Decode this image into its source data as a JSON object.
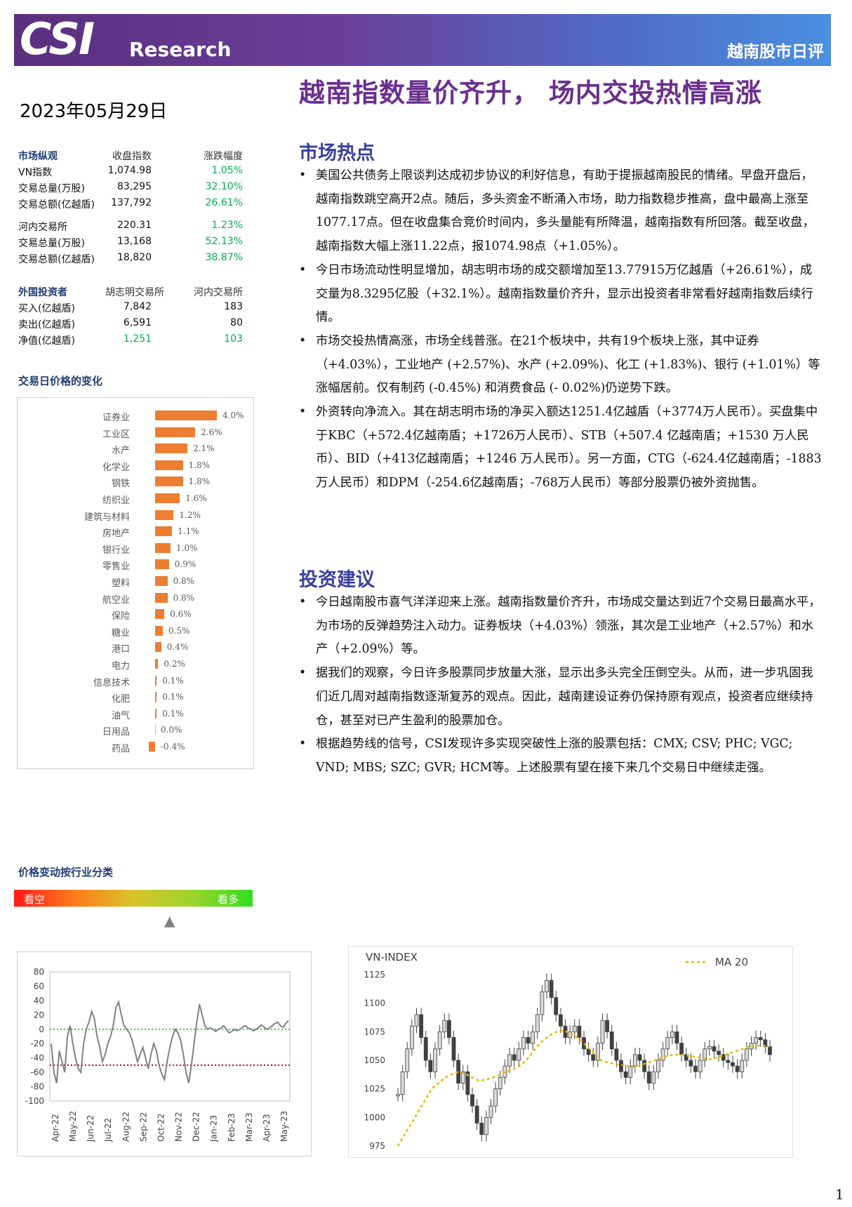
{
  "header": {
    "logo": "CSI",
    "logo_sub": "Research",
    "report_type": "越南股市日评"
  },
  "headline": "越南指数量价齐升， 场内交投热情高涨",
  "date": "2023年05月29日",
  "market_overview": {
    "title": "市场纵观",
    "col_close": "收盘指数",
    "col_change": "涨跌幅度",
    "rows": [
      {
        "label": "VN指数",
        "value": "1,074.98",
        "change": "1.05%"
      },
      {
        "label": "交易总量(万股)",
        "value": "83,295",
        "change": "32.10%"
      },
      {
        "label": "交易总额(亿越盾)",
        "value": "137,792",
        "change": "26.61%"
      },
      {
        "label": "河内交易所",
        "value": "220.31",
        "change": "1.23%"
      },
      {
        "label": "交易总量(万股)",
        "value": "13,168",
        "change": "52.13%"
      },
      {
        "label": "交易总额(亿越盾)",
        "value": "18,820",
        "change": "38.87%"
      }
    ]
  },
  "foreign": {
    "title": "外国投资者",
    "col_hose": "胡志明交易所",
    "col_hnx": "河内交易所",
    "rows": [
      {
        "label": "买入(亿越盾)",
        "hose": "7,842",
        "hnx": "183"
      },
      {
        "label": "卖出(亿越盾)",
        "hose": "6,591",
        "hnx": "80"
      },
      {
        "label": "净值(亿越盾)",
        "hose": "1,251",
        "hnx": "103"
      }
    ]
  },
  "sector_title": "交易日价格的变化",
  "chart_data": [
    {
      "type": "bar",
      "categories": [
        "证券业",
        "工业区",
        "水产",
        "化学业",
        "钢铁",
        "纺织业",
        "建筑与材料",
        "房地产",
        "银行业",
        "零售业",
        "塑料",
        "航空业",
        "保险",
        "糖业",
        "港口",
        "电力",
        "信息技术",
        "化肥",
        "油气",
        "日用品",
        "药品"
      ],
      "values": [
        4.0,
        2.6,
        2.1,
        1.8,
        1.8,
        1.6,
        1.2,
        1.1,
        1.0,
        0.9,
        0.8,
        0.8,
        0.6,
        0.5,
        0.4,
        0.2,
        0.1,
        0.1,
        0.1,
        0.0,
        -0.4
      ],
      "value_labels": [
        "4.0%",
        "2.6%",
        "2.1%",
        "1.8%",
        "1.8%",
        "1.6%",
        "1.2%",
        "1.1%",
        "1.0%",
        "0.9%",
        "0.8%",
        "0.8%",
        "0.6%",
        "0.5%",
        "0.4%",
        "0.2%",
        "0.1%",
        "0.1%",
        "0.1%",
        "0.0%",
        "-0.4%"
      ],
      "title": "",
      "bar_color": "#ed7d31"
    },
    {
      "type": "line",
      "title": "",
      "ylim": [
        -100,
        80
      ],
      "yticks": [
        "80",
        "60",
        "40",
        "20",
        "0",
        "-20",
        "-40",
        "-60",
        "-80",
        "-100"
      ],
      "xticks": [
        "Apr-22",
        "May-22",
        "Jun-22",
        "Jul-22",
        "Aug-22",
        "Sep-22",
        "Oct-22",
        "Nov-22",
        "Dec-22",
        "Jan-23",
        "Feb-23",
        "Mar-23",
        "Apr-23",
        "May-23"
      ],
      "reference_lines": [
        {
          "y": 0,
          "color": "#33cc33"
        },
        {
          "y": -50,
          "color": "#c00000"
        }
      ],
      "series": [
        {
          "values": [
            -20,
            -60,
            -75,
            -30,
            -45,
            -60,
            -10,
            5,
            -20,
            -40,
            -55,
            -60,
            -20,
            0,
            10,
            25,
            15,
            -10,
            -25,
            -45,
            -35,
            -20,
            -10,
            5,
            30,
            38,
            20,
            5,
            0,
            -5,
            -15,
            -30,
            -45,
            -35,
            -25,
            -40,
            -55,
            -35,
            -20,
            -30,
            -50,
            -62,
            -70,
            -45,
            -25,
            -10,
            0,
            -5,
            -15,
            -35,
            -60,
            -75,
            -50,
            -20,
            10,
            35,
            20,
            5,
            0,
            2,
            0,
            -3,
            0,
            2,
            5,
            0,
            -5,
            -3,
            0,
            -2,
            0,
            3,
            5,
            2,
            0,
            -2,
            0,
            3,
            6,
            3,
            0,
            2,
            5,
            8,
            10,
            5,
            3,
            8,
            12
          ]
        }
      ],
      "line_color": "#808080"
    },
    {
      "type": "line",
      "title": "VN-INDEX",
      "ylim": [
        975,
        1125
      ],
      "yticks": [
        "1125",
        "1100",
        "1075",
        "1050",
        "1025",
        "1000",
        "975"
      ],
      "series": [
        {
          "name": "VN-INDEX",
          "values": [
            1020,
            1040,
            1060,
            1080,
            1090,
            1070,
            1050,
            1040,
            1060,
            1075,
            1085,
            1070,
            1050,
            1030,
            1040,
            1020,
            1010,
            995,
            985,
            1000,
            1010,
            1025,
            1035,
            1045,
            1055,
            1050,
            1060,
            1070,
            1065,
            1075,
            1090,
            1110,
            1120,
            1105,
            1090,
            1080,
            1070,
            1075,
            1080,
            1070,
            1060,
            1055,
            1050,
            1065,
            1085,
            1075,
            1060,
            1050,
            1040,
            1035,
            1045,
            1055,
            1050,
            1040,
            1030,
            1040,
            1050,
            1060,
            1070,
            1075,
            1065,
            1055,
            1050,
            1045,
            1040,
            1050,
            1060,
            1062,
            1058,
            1055,
            1050,
            1048,
            1045,
            1040,
            1050,
            1060,
            1065,
            1070,
            1068,
            1062,
            1055
          ]
        },
        {
          "name": "MA 20",
          "values": [
            975,
            985,
            995,
            1005,
            1015,
            1025,
            1030,
            1035,
            1038,
            1040,
            1038,
            1035,
            1032,
            1033,
            1035,
            1037,
            1040,
            1042,
            1045,
            1050,
            1058,
            1065,
            1070,
            1074,
            1076,
            1075,
            1072,
            1068,
            1062,
            1056,
            1050,
            1048,
            1047,
            1046,
            1045,
            1044,
            1046,
            1048,
            1050,
            1052,
            1054,
            1055,
            1055,
            1054,
            1053,
            1052,
            1051,
            1052,
            1054,
            1056,
            1058,
            1060,
            1062,
            1063,
            1063,
            1062
          ]
        }
      ],
      "legend": "MA 20",
      "legend_position": "top-right"
    }
  ],
  "hot": {
    "title": "市场热点",
    "bullets": [
      "美国公共债务上限谈判达成初步协议的利好信息，有助于提振越南股民的情绪。早盘开盘后，越南指数跳空高开2点。随后，多头资金不断涌入市场，助力指数稳步推高，盘中最高上涨至1077.17点。但在收盘集合竞价时间内，多头量能有所降温，越南指数有所回落。截至收盘，越南指数大幅上涨11.22点，报1074.98点（+1.05%）。",
      "今日市场流动性明显增加，胡志明市场的成交额增加至13.77915万亿越盾（+26.61%），成交量为8.3295亿股（+32.1%）。越南指数量价齐升，显示出投资者非常看好越南指数后续行情。",
      "市场交投热情高涨，市场全线普涨。在21个板块中，共有19个板块上涨，其中证券（+4.03%），工业地产 (+2.57%)、水产 (+2.09%)、化工 (+1.83%)、银行 (+1.01%）等涨幅居前。仅有制药 (-0.45%) 和消费食品 (- 0.02%)仍逆势下跌。",
      "外资转向净流入。其在胡志明市场的净买入额达1251.4亿越盾（+3774万人民币）。买盘集中于KBC（+572.4亿越南盾；+1726万人民币）、STB（+507.4 亿越南盾；+1530 万人民币）、BID（+413亿越南盾；+1246 万人民币）。另一方面，CTG（-624.4亿越南盾；-1883万人民币）和DPM（-254.6亿越南盾；-768万人民币）等部分股票仍被外资抛售。"
    ]
  },
  "advice": {
    "title": "投资建议",
    "bullets": [
      "今日越南股市喜气洋洋迎来上涨。越南指数量价齐升，市场成交量达到近7个交易日最高水平，为市场的反弹趋势注入动力。证券板块（+4.03%）领涨，其次是工业地产（+2.57%）和水产（+2.09%）等。",
      "据我们的观察，今日许多股票同步放量大涨，显示出多头完全压倒空头。从而，进一步巩固我们近几周对越南指数逐渐复苏的观点。因此，越南建设证券仍保持原有观点，投资者应继续持仓，甚至对已产生盈利的股票加仓。",
      "根据趋势线的信号，CSI发现许多实现突破性上涨的股票包括：CMX; CSV; PHC; VGC; VND; MBS; SZC; GVR; HCM等。上述股票有望在接下来几个交易日中继续走强。"
    ]
  },
  "sentiment": {
    "title": "价格变动按行业分类",
    "bear": "看空",
    "bull": "看多",
    "position": 0.66
  },
  "page_number": "1"
}
